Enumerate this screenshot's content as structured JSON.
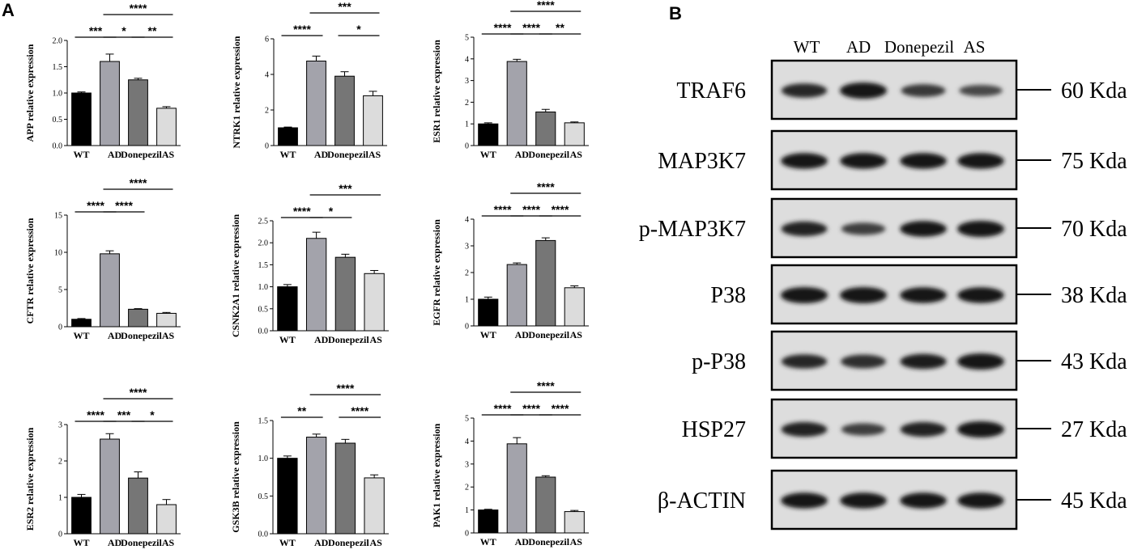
{
  "panel_a_label": "A",
  "panel_b_label": "B",
  "colors": {
    "WT": "#000000",
    "AD": "#a3a3ab",
    "Donepezil": "#767676",
    "AS": "#dcdcdc",
    "outline": "#000000"
  },
  "chart_data": [
    {
      "type": "bar",
      "ylabel": "APP relative expression",
      "categories": [
        "WT",
        "AD",
        "Donepezil",
        "AS"
      ],
      "values": [
        1.0,
        1.6,
        1.25,
        0.71
      ],
      "errors": [
        0.02,
        0.14,
        0.03,
        0.03
      ],
      "ylim": [
        0,
        2.0
      ],
      "yticks": [
        "0.0",
        "0.5",
        "1.0",
        "1.5",
        "2.0"
      ],
      "significance": [
        {
          "from": 0,
          "to": 1,
          "label": "***"
        },
        {
          "from": 1,
          "to": 2,
          "label": "*"
        },
        {
          "from": 2,
          "to": 3,
          "label": "**"
        },
        {
          "from": 1,
          "to": 3,
          "label": "****"
        }
      ]
    },
    {
      "type": "bar",
      "ylabel": "NTRK1 relative expression",
      "categories": [
        "WT",
        "AD",
        "Donepezil",
        "AS"
      ],
      "values": [
        1.0,
        4.75,
        3.9,
        2.8
      ],
      "errors": [
        0.04,
        0.28,
        0.25,
        0.25
      ],
      "ylim": [
        0,
        6
      ],
      "yticks": [
        "0",
        "2",
        "4",
        "6"
      ],
      "significance": [
        {
          "from": 0,
          "to": 1,
          "label": "****"
        },
        {
          "from": 2,
          "to": 3,
          "label": "*"
        },
        {
          "from": 1,
          "to": 3,
          "label": "***"
        }
      ]
    },
    {
      "type": "bar",
      "ylabel": "ESR1 relative expression",
      "categories": [
        "WT",
        "AD",
        "Donepezil",
        "AS"
      ],
      "values": [
        1.0,
        3.88,
        1.55,
        1.05
      ],
      "errors": [
        0.05,
        0.1,
        0.12,
        0.04
      ],
      "ylim": [
        0,
        5
      ],
      "yticks": [
        "0",
        "1",
        "2",
        "3",
        "4",
        "5"
      ],
      "significance": [
        {
          "from": 0,
          "to": 1,
          "label": "****"
        },
        {
          "from": 1,
          "to": 2,
          "label": "****"
        },
        {
          "from": 2,
          "to": 3,
          "label": "**"
        },
        {
          "from": 1,
          "to": 3,
          "label": "****"
        }
      ]
    },
    {
      "type": "bar",
      "ylabel": "CFTR relative expression",
      "categories": [
        "WT",
        "AD",
        "Donepezil",
        "AS"
      ],
      "values": [
        1.0,
        9.8,
        2.35,
        1.8
      ],
      "errors": [
        0.1,
        0.4,
        0.08,
        0.12
      ],
      "ylim": [
        0,
        15
      ],
      "yticks": [
        "0",
        "5",
        "10",
        "15"
      ],
      "significance": [
        {
          "from": 0,
          "to": 1,
          "label": "****"
        },
        {
          "from": 1,
          "to": 2,
          "label": "****"
        },
        {
          "from": 1,
          "to": 3,
          "label": "****"
        }
      ]
    },
    {
      "type": "bar",
      "ylabel": "CSNK2A1 relative expression",
      "categories": [
        "WT",
        "AD",
        "Donepezil",
        "AS"
      ],
      "values": [
        1.0,
        2.1,
        1.67,
        1.3
      ],
      "errors": [
        0.05,
        0.14,
        0.07,
        0.07
      ],
      "ylim": [
        0,
        2.5
      ],
      "yticks": [
        "0.0",
        "0.5",
        "1.0",
        "1.5",
        "2.0",
        "2.5"
      ],
      "significance": [
        {
          "from": 0,
          "to": 1,
          "label": "****"
        },
        {
          "from": 1,
          "to": 2,
          "label": "*"
        },
        {
          "from": 1,
          "to": 3,
          "label": "***"
        }
      ]
    },
    {
      "type": "bar",
      "ylabel": "EGFR relative expression",
      "categories": [
        "WT",
        "AD",
        "Donepezil",
        "AS"
      ],
      "values": [
        1.0,
        2.3,
        3.2,
        1.43
      ],
      "errors": [
        0.08,
        0.06,
        0.1,
        0.07
      ],
      "ylim": [
        0,
        4
      ],
      "yticks": [
        "0",
        "1",
        "2",
        "3",
        "4"
      ],
      "significance": [
        {
          "from": 0,
          "to": 1,
          "label": "****"
        },
        {
          "from": 1,
          "to": 2,
          "label": "****"
        },
        {
          "from": 2,
          "to": 3,
          "label": "****"
        },
        {
          "from": 1,
          "to": 3,
          "label": "****"
        }
      ]
    },
    {
      "type": "bar",
      "ylabel": "ESR2 relative expression",
      "categories": [
        "WT",
        "AD",
        "Donepezil",
        "AS"
      ],
      "values": [
        1.0,
        2.6,
        1.53,
        0.8
      ],
      "errors": [
        0.08,
        0.15,
        0.17,
        0.14
      ],
      "ylim": [
        0,
        3
      ],
      "yticks": [
        "0",
        "1",
        "2",
        "3"
      ],
      "significance": [
        {
          "from": 0,
          "to": 1,
          "label": "****"
        },
        {
          "from": 1,
          "to": 2,
          "label": "***"
        },
        {
          "from": 2,
          "to": 3,
          "label": "*"
        },
        {
          "from": 1,
          "to": 3,
          "label": "****"
        }
      ]
    },
    {
      "type": "bar",
      "ylabel": "GSK3B relative expression",
      "categories": [
        "WT",
        "AD",
        "Donepezil",
        "AS"
      ],
      "values": [
        1.0,
        1.28,
        1.2,
        0.74
      ],
      "errors": [
        0.03,
        0.04,
        0.05,
        0.04
      ],
      "ylim": [
        0,
        1.5
      ],
      "yticks": [
        "0.0",
        "0.5",
        "1.0",
        "1.5"
      ],
      "significance": [
        {
          "from": 0,
          "to": 1,
          "label": "**"
        },
        {
          "from": 2,
          "to": 3,
          "label": "****"
        },
        {
          "from": 1,
          "to": 3,
          "label": "****"
        }
      ]
    },
    {
      "type": "bar",
      "ylabel": "PAK1 relative expression",
      "categories": [
        "WT",
        "AD",
        "Donepezil",
        "AS"
      ],
      "values": [
        1.0,
        3.88,
        2.43,
        0.93
      ],
      "errors": [
        0.03,
        0.27,
        0.06,
        0.05
      ],
      "ylim": [
        0,
        5
      ],
      "yticks": [
        "0",
        "1",
        "2",
        "3",
        "4",
        "5"
      ],
      "significance": [
        {
          "from": 0,
          "to": 1,
          "label": "****"
        },
        {
          "from": 1,
          "to": 2,
          "label": "****"
        },
        {
          "from": 2,
          "to": 3,
          "label": "****"
        },
        {
          "from": 1,
          "to": 3,
          "label": "****"
        }
      ]
    }
  ],
  "blot": {
    "columns": [
      "WT",
      "AD",
      "Donepezil",
      "AS"
    ],
    "rows": [
      {
        "protein": "TRAF6",
        "kda": "60 Kda",
        "intensity": [
          0.8,
          1.0,
          0.65,
          0.5
        ]
      },
      {
        "protein": "MAP3K7",
        "kda": "75 Kda",
        "intensity": [
          0.95,
          0.95,
          0.95,
          0.95
        ]
      },
      {
        "protein": "p-MAP3K7",
        "kda": "70 Kda",
        "intensity": [
          0.85,
          0.6,
          0.95,
          1.0
        ]
      },
      {
        "protein": "P38",
        "kda": "38 Kda",
        "intensity": [
          1.0,
          1.0,
          0.95,
          0.95
        ]
      },
      {
        "protein": "p-P38",
        "kda": "43 Kda",
        "intensity": [
          0.8,
          0.75,
          0.9,
          1.0
        ]
      },
      {
        "protein": "HSP27",
        "kda": "27 Kda",
        "intensity": [
          0.85,
          0.6,
          0.85,
          1.0
        ]
      },
      {
        "protein": "β-ACTIN",
        "kda": "45 Kda",
        "intensity": [
          0.95,
          0.95,
          0.95,
          0.95
        ]
      }
    ]
  }
}
